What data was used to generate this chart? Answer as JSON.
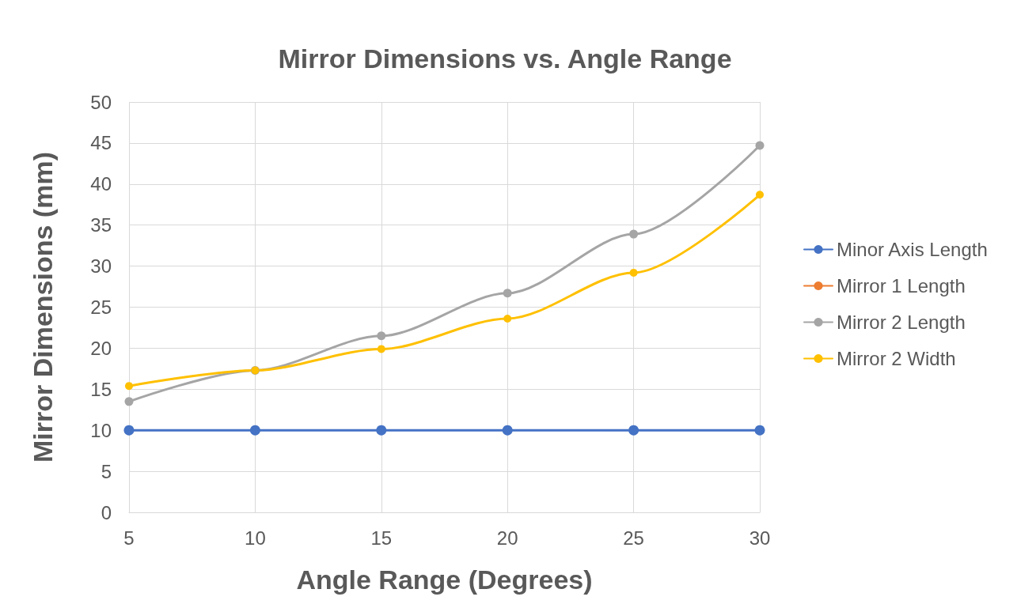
{
  "chart_data": {
    "type": "line",
    "title": "Mirror Dimensions vs. Angle Range",
    "xlabel": "Angle Range (Degrees)",
    "ylabel": "Mirror Dimensions (mm)",
    "x": [
      5,
      10,
      15,
      20,
      25,
      30
    ],
    "series": [
      {
        "name": "Minor Axis Length",
        "color": "#4472c4",
        "values": [
          10,
          10,
          10,
          10,
          10,
          10
        ]
      },
      {
        "name": "Mirror 1 Length",
        "color": "#ed7d31",
        "values": [
          null,
          null,
          null,
          null,
          null,
          null
        ]
      },
      {
        "name": "Mirror 2 Length",
        "color": "#a5a5a5",
        "values": [
          13.5,
          17.3,
          21.5,
          26.7,
          33.9,
          44.7
        ]
      },
      {
        "name": "Mirror 2 Width",
        "color": "#ffc000",
        "values": [
          15.4,
          17.3,
          19.9,
          23.6,
          29.2,
          38.7
        ]
      }
    ],
    "xlim": [
      5,
      30
    ],
    "xticks": [
      5,
      10,
      15,
      20,
      25,
      30
    ],
    "ylim": [
      0,
      50
    ],
    "yticks": [
      0,
      5,
      10,
      15,
      20,
      25,
      30,
      35,
      40,
      45,
      50
    ],
    "grid": true,
    "legend": "right",
    "marker": "circle",
    "line_style": "solid"
  }
}
